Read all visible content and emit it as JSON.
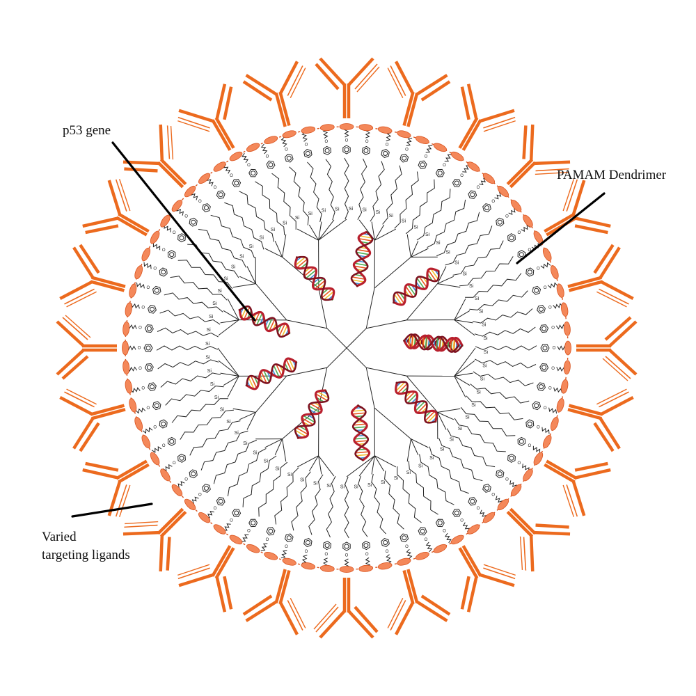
{
  "labels": {
    "p53_gene": "p53 gene",
    "pamam": "PAMAM Dendrimer",
    "ligands_line1": "Varied",
    "ligands_line2": "targeting ligands"
  },
  "atom_labels": {
    "si": "Si",
    "o": "O"
  },
  "colors": {
    "antibody": "#EC6A1E",
    "bead": "#F4885A",
    "bead_stroke": "#D9531E",
    "dashed_ring": "#D9531E",
    "chain": "#222222",
    "dna_strand": "#B8202E",
    "dna_strand_dark": "#7E1220",
    "dna_rungs": [
      "#F2C230",
      "#3A8FD6",
      "#4CAF50",
      "#E8571C"
    ],
    "pointer": "#000000"
  },
  "counts": {
    "antibodies": 24,
    "beads": 72,
    "dendrons": 64,
    "dna_helices": 10
  }
}
